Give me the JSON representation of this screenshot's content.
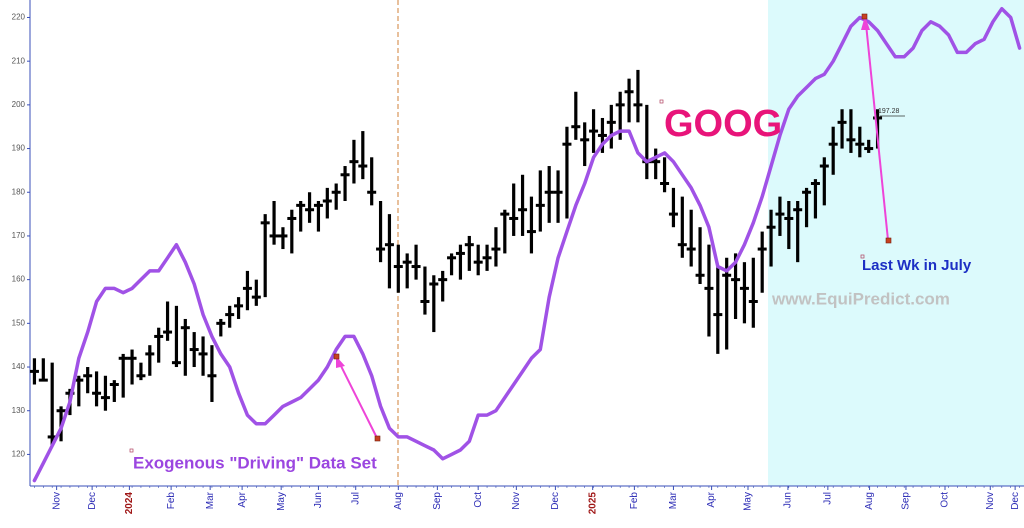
{
  "chart_data": {
    "type": "ohlc",
    "title": "GOOG",
    "watermark": "www.EquiPredict.com",
    "annotations": [
      "Exogenous \"Driving\" Data Set",
      "Last Wk in July"
    ],
    "price_label": "197.28",
    "ylim": [
      113,
      224
    ],
    "yticks": [
      120,
      130,
      140,
      150,
      160,
      170,
      180,
      190,
      200,
      210,
      220
    ],
    "xlim": [
      0,
      112
    ],
    "xticks": [
      {
        "value": 3.0,
        "label": "Nov"
      },
      {
        "value": 7.0,
        "label": "Dec"
      },
      {
        "value": 11.2,
        "label": "2024"
      },
      {
        "value": 15.9,
        "label": "Feb"
      },
      {
        "value": 20.3,
        "label": "Mar"
      },
      {
        "value": 23.9,
        "label": "Apr"
      },
      {
        "value": 28.3,
        "label": "May"
      },
      {
        "value": 32.5,
        "label": "Jun"
      },
      {
        "value": 36.7,
        "label": "Jul"
      },
      {
        "value": 41.5,
        "label": "Aug"
      },
      {
        "value": 45.9,
        "label": "Sep"
      },
      {
        "value": 50.5,
        "label": "Oct"
      },
      {
        "value": 54.8,
        "label": "Nov"
      },
      {
        "value": 59.2,
        "label": "Dec"
      },
      {
        "value": 63.4,
        "label": "2025"
      },
      {
        "value": 68.1,
        "label": "Feb"
      },
      {
        "value": 72.5,
        "label": "Mar"
      },
      {
        "value": 76.8,
        "label": "Apr"
      },
      {
        "value": 80.9,
        "label": "May"
      },
      {
        "value": 85.4,
        "label": "Jun"
      },
      {
        "value": 89.9,
        "label": "Jul"
      },
      {
        "value": 94.6,
        "label": "Aug"
      },
      {
        "value": 98.7,
        "label": "Sep"
      },
      {
        "value": 103.1,
        "label": "Oct"
      },
      {
        "value": 108.2,
        "label": "Nov"
      },
      {
        "value": 111.0,
        "label": "Dec"
      }
    ],
    "xtick_color": "#2b2bb5",
    "xtick_year_color": "#a01818",
    "bar_color": "#000000",
    "high": [
      142,
      142,
      141,
      131,
      135,
      138,
      140,
      139,
      138,
      137,
      143,
      144,
      141,
      145,
      149,
      155,
      154,
      151,
      148,
      147,
      145,
      151,
      154,
      156,
      162,
      160,
      175,
      178,
      172,
      176,
      178,
      180,
      178,
      181,
      182,
      186,
      192,
      194,
      188,
      178,
      175,
      168,
      166,
      168,
      163,
      161,
      162,
      166,
      168,
      170,
      168,
      168,
      172,
      176,
      182,
      184,
      179,
      185,
      186,
      185,
      195,
      203,
      196,
      199,
      197,
      200,
      203,
      206,
      208,
      200,
      190,
      188,
      181,
      179,
      176,
      172,
      168,
      163,
      165,
      166,
      164,
      165,
      171,
      176,
      179,
      178,
      178,
      181,
      183,
      188,
      195,
      199,
      199,
      195,
      192,
      199
    ],
    "low": [
      136,
      137,
      122,
      123,
      129,
      131,
      134,
      131,
      130,
      132,
      133,
      136,
      137,
      138,
      141,
      146,
      140,
      138,
      140,
      138,
      132,
      147,
      149,
      151,
      153,
      154,
      156,
      168,
      167,
      166,
      171,
      173,
      171,
      174,
      176,
      178,
      182,
      183,
      177,
      164,
      158,
      157,
      158,
      160,
      152,
      148,
      155,
      161,
      160,
      162,
      161,
      162,
      163,
      166,
      170,
      170,
      166,
      171,
      173,
      173,
      174,
      192,
      186,
      189,
      189,
      190,
      192,
      196,
      196,
      183,
      183,
      180,
      172,
      165,
      163,
      159,
      147,
      143,
      144,
      151,
      150,
      149,
      157,
      163,
      170,
      167,
      164,
      172,
      174,
      177,
      184,
      190,
      189,
      188,
      189,
      190
    ],
    "close": [
      139,
      137,
      124,
      130,
      134,
      137,
      138,
      134,
      133,
      136,
      142,
      142,
      138,
      143,
      147,
      148,
      141,
      149,
      144,
      143,
      138,
      150,
      152,
      154,
      158,
      156,
      173,
      170,
      170,
      174,
      177,
      176,
      177,
      178,
      180,
      184,
      187,
      186,
      180,
      167,
      168,
      163,
      164,
      163,
      155,
      159,
      160,
      165,
      166,
      168,
      164,
      165,
      167,
      175,
      174,
      176,
      171,
      177,
      180,
      180,
      191,
      195,
      192,
      194,
      193,
      196,
      200,
      203,
      200,
      187,
      187,
      182,
      175,
      168,
      167,
      161,
      158,
      152,
      161,
      160,
      158,
      155,
      167,
      172,
      175,
      174,
      176,
      180,
      182,
      186,
      191,
      196,
      192,
      191,
      190,
      197
    ],
    "line": {
      "color": "#a052e6",
      "values": [
        114,
        118,
        122,
        126,
        132,
        142,
        148,
        155,
        158,
        158,
        157,
        158,
        160,
        162,
        162,
        165,
        168,
        164,
        159,
        152,
        147,
        143,
        140,
        134,
        129,
        127,
        127,
        129,
        131,
        132,
        133,
        135,
        137,
        140,
        144,
        147,
        147,
        143,
        138,
        131,
        126,
        124,
        124,
        123,
        122,
        121,
        119,
        120,
        121,
        123,
        129,
        129,
        130,
        133,
        136,
        139,
        142,
        144,
        156,
        165,
        171,
        177,
        182,
        188,
        191,
        193,
        194,
        194,
        189,
        187,
        188,
        189,
        187,
        184,
        181,
        177,
        172,
        163,
        162,
        164,
        168,
        173,
        179,
        186,
        193,
        199,
        202,
        204,
        206,
        207,
        210,
        214,
        218,
        220,
        219,
        217,
        214,
        211,
        211,
        213,
        217,
        219,
        218,
        216,
        212,
        212,
        214,
        215,
        219,
        222,
        220,
        213
      ]
    }
  }
}
